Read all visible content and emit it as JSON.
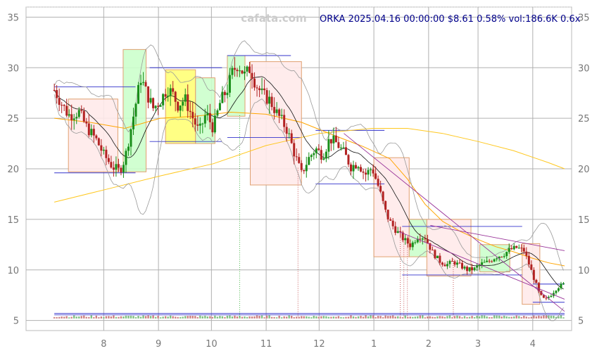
{
  "watermark": "cafata.com",
  "header": {
    "ticker": "ORKA",
    "datetime": "2025.04.16 00:00:00",
    "price": "$8.61",
    "change": "0.58%",
    "volume": "vol:186.6K",
    "extra": "0.6x"
  },
  "chart_data": {
    "type": "candlestick",
    "title": "",
    "xlabel": "",
    "ylabel": "",
    "ylim": [
      4,
      36
    ],
    "y_ticks": [
      5,
      10,
      15,
      20,
      25,
      30,
      35
    ],
    "y_tick_labels": [
      "5",
      "10",
      "15",
      "20",
      "25",
      "30",
      "35"
    ],
    "x_ticks": [
      {
        "label": "8",
        "day": 28
      },
      {
        "label": "9",
        "day": 59
      },
      {
        "label": "10",
        "day": 89
      },
      {
        "label": "11",
        "day": 120
      },
      {
        "label": "12",
        "day": 150
      },
      {
        "label": "1",
        "day": 181
      },
      {
        "label": "2",
        "day": 212
      },
      {
        "label": "3",
        "day": 240
      },
      {
        "label": "4",
        "day": 271
      }
    ],
    "x_range": [
      -16,
      293
    ],
    "grid": true,
    "price_path": [
      [
        0,
        27.8
      ],
      [
        4,
        26.5
      ],
      [
        8,
        25.3
      ],
      [
        14,
        25.6
      ],
      [
        18,
        24.2
      ],
      [
        24,
        22.8
      ],
      [
        28,
        21.4
      ],
      [
        33,
        20.2
      ],
      [
        37,
        19.8
      ],
      [
        40,
        21.0
      ],
      [
        44,
        24.5
      ],
      [
        47,
        27.2
      ],
      [
        49,
        29.0
      ],
      [
        52,
        27.6
      ],
      [
        56,
        26.0
      ],
      [
        60,
        26.7
      ],
      [
        64,
        28.0
      ],
      [
        67,
        27.4
      ],
      [
        70,
        26.3
      ],
      [
        74,
        26.9
      ],
      [
        78,
        25.2
      ],
      [
        82,
        23.6
      ],
      [
        86,
        25.5
      ],
      [
        90,
        24.0
      ],
      [
        94,
        26.6
      ],
      [
        98,
        27.9
      ],
      [
        101,
        29.6
      ],
      [
        104,
        30.4
      ],
      [
        108,
        29.2
      ],
      [
        111,
        30.0
      ],
      [
        114,
        28.4
      ],
      [
        118,
        27.3
      ],
      [
        122,
        26.8
      ],
      [
        126,
        25.5
      ],
      [
        129,
        24.7
      ],
      [
        132,
        23.8
      ],
      [
        136,
        21.5
      ],
      [
        140,
        19.5
      ],
      [
        144,
        21.0
      ],
      [
        148,
        22.0
      ],
      [
        152,
        21.3
      ],
      [
        156,
        23.0
      ],
      [
        160,
        22.5
      ],
      [
        164,
        21.6
      ],
      [
        168,
        20.2
      ],
      [
        172,
        20.6
      ],
      [
        176,
        19.4
      ],
      [
        180,
        20.1
      ],
      [
        184,
        18.0
      ],
      [
        188,
        15.5
      ],
      [
        191,
        14.5
      ],
      [
        195,
        13.6
      ],
      [
        198,
        13.0
      ],
      [
        202,
        12.4
      ],
      [
        206,
        13.4
      ],
      [
        210,
        13.2
      ],
      [
        214,
        11.8
      ],
      [
        218,
        10.9
      ],
      [
        222,
        10.5
      ],
      [
        226,
        10.8
      ],
      [
        230,
        10.4
      ],
      [
        234,
        10.0
      ],
      [
        238,
        10.1
      ],
      [
        242,
        10.6
      ],
      [
        246,
        10.8
      ],
      [
        250,
        11.3
      ],
      [
        254,
        11.5
      ],
      [
        258,
        12.0
      ],
      [
        262,
        12.2
      ],
      [
        266,
        11.9
      ],
      [
        269,
        10.5
      ],
      [
        272,
        9.0
      ],
      [
        275,
        7.5
      ],
      [
        278,
        7.0
      ],
      [
        281,
        7.5
      ],
      [
        285,
        8.3
      ],
      [
        289,
        8.61
      ]
    ],
    "sma_long": [
      [
        0,
        16.7
      ],
      [
        30,
        18.0
      ],
      [
        60,
        19.3
      ],
      [
        90,
        20.5
      ],
      [
        120,
        22.3
      ],
      [
        150,
        23.5
      ],
      [
        180,
        24.0
      ],
      [
        200,
        24.0
      ],
      [
        220,
        23.5
      ],
      [
        240,
        22.7
      ],
      [
        260,
        21.8
      ],
      [
        280,
        20.6
      ],
      [
        289,
        20.0
      ]
    ],
    "sma_mid": [
      [
        0,
        25.0
      ],
      [
        20,
        24.6
      ],
      [
        40,
        24.0
      ],
      [
        60,
        25.0
      ],
      [
        80,
        25.2
      ],
      [
        100,
        25.6
      ],
      [
        120,
        25.4
      ],
      [
        140,
        24.6
      ],
      [
        160,
        23.2
      ],
      [
        175,
        22.2
      ],
      [
        190,
        21.0
      ],
      [
        200,
        19.0
      ],
      [
        210,
        16.5
      ],
      [
        220,
        14.8
      ],
      [
        230,
        13.8
      ],
      [
        240,
        13.0
      ],
      [
        250,
        12.3
      ],
      [
        260,
        11.8
      ],
      [
        270,
        11.2
      ],
      [
        280,
        10.7
      ],
      [
        289,
        10.4
      ]
    ],
    "zones": [
      {
        "kind": "down",
        "x0": 8,
        "x1": 36,
        "y0": 19.7,
        "y1": 26.9
      },
      {
        "kind": "up",
        "x0": 39,
        "x1": 52,
        "y0": 19.7,
        "y1": 31.8
      },
      {
        "kind": "flat",
        "x0": 63,
        "x1": 80,
        "y0": 22.5,
        "y1": 29.8
      },
      {
        "kind": "up",
        "x0": 80,
        "x1": 91,
        "y0": 22.5,
        "y1": 29.0
      },
      {
        "kind": "up",
        "x0": 98,
        "x1": 108,
        "y0": 25.2,
        "y1": 31.2
      },
      {
        "kind": "down",
        "x0": 111,
        "x1": 140,
        "y0": 18.4,
        "y1": 30.6
      },
      {
        "kind": "down",
        "x0": 181,
        "x1": 201,
        "y0": 11.3,
        "y1": 21.1
      },
      {
        "kind": "up",
        "x0": 201,
        "x1": 211,
        "y0": 11.3,
        "y1": 15.0
      },
      {
        "kind": "down",
        "x0": 211,
        "x1": 236,
        "y0": 9.4,
        "y1": 15.0
      },
      {
        "kind": "up",
        "x0": 241,
        "x1": 258,
        "y0": 9.8,
        "y1": 12.5
      },
      {
        "kind": "down",
        "x0": 265,
        "x1": 275,
        "y0": 6.6,
        "y1": 12.6
      }
    ],
    "levels": [
      {
        "x0": 0,
        "x1": 46,
        "y": 28.1
      },
      {
        "x0": 0,
        "x1": 46,
        "y": 19.6
      },
      {
        "x0": 54,
        "x1": 95,
        "y": 30.0
      },
      {
        "x0": 54,
        "x1": 95,
        "y": 22.7
      },
      {
        "x0": 98,
        "x1": 134,
        "y": 31.2
      },
      {
        "x0": 98,
        "x1": 140,
        "y": 23.1
      },
      {
        "x0": 148,
        "x1": 187,
        "y": 23.8
      },
      {
        "x0": 148,
        "x1": 187,
        "y": 18.5
      },
      {
        "x0": 197,
        "x1": 265,
        "y": 14.3
      },
      {
        "x0": 197,
        "x1": 265,
        "y": 9.5
      },
      {
        "x0": 271,
        "x1": 289,
        "y": 8.6
      },
      {
        "x0": 271,
        "x1": 289,
        "y": 6.8
      },
      {
        "x0": 0,
        "x1": 289,
        "y": 5.55
      },
      {
        "x0": 0,
        "x1": 289,
        "y": 5.7
      }
    ],
    "trendlines": [
      {
        "x0": 164,
        "y0": 23.5,
        "x1": 289,
        "y1": 5.9
      },
      {
        "x0": 213,
        "y0": 14.4,
        "x1": 289,
        "y1": 11.9
      },
      {
        "x0": 195,
        "y0": 13.8,
        "x1": 289,
        "y1": 7.1
      }
    ],
    "event_lines": [
      {
        "x": 105,
        "y_top": 25.3
      },
      {
        "x": 138,
        "y_top": 20.1
      },
      {
        "x": 196,
        "y_top": 13.6
      },
      {
        "x": 198,
        "y_top": 13.0
      },
      {
        "x": 200,
        "y_top": 12.6
      },
      {
        "x": 226,
        "y_top": 11.1
      }
    ]
  },
  "colors": {
    "up": "#1a8f1a",
    "down": "#b22222",
    "zone_up_fill": "#ccffcc",
    "zone_down_fill": "#ffeaea",
    "zone_flat_fill": "#ffff77",
    "zone_edge": "#e0a070",
    "level_line": "#3333cc",
    "sma_long": "#ffc820",
    "sma_mid": "#ffa500",
    "sma_short": "#111111",
    "band": "#999999",
    "trend": "#993399",
    "grid": "#b0b0b0",
    "header_text": "#00008b",
    "watermark": "#cccccc"
  }
}
